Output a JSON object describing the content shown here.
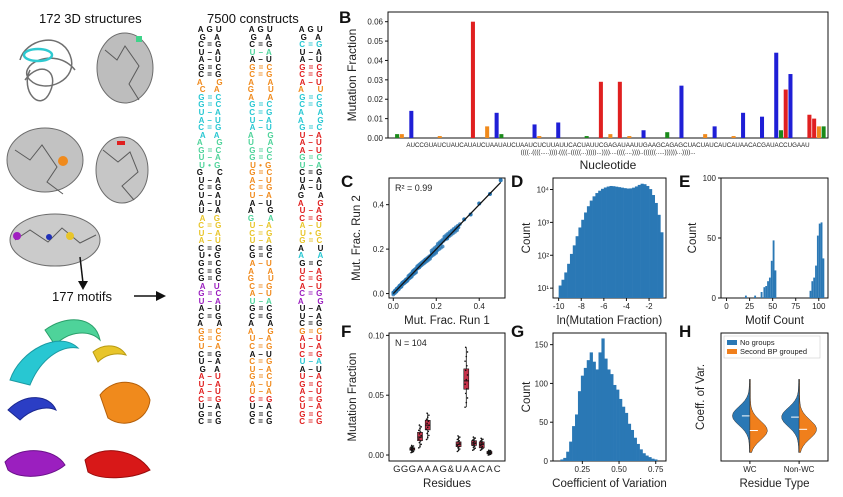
{
  "schematic": {
    "title_structures": "172 3D structures",
    "title_motifs": "177 motifs",
    "title_constructs": "7500 constructs"
  },
  "panel_labels": {
    "B": "B",
    "C": "C",
    "D": "D",
    "E": "E",
    "F": "F",
    "G": "G",
    "H": "H"
  },
  "constructs_columns": [
    [
      "A G U",
      "G   A",
      "C = G",
      "U – A",
      "A – U",
      "G = C",
      "C = G",
      "A     G",
      "C   A",
      "G = C",
      "G = C",
      "U – A",
      "A – U",
      "C = G",
      "A   A",
      "A     G",
      "G = C",
      "U – A",
      "U • G",
      "G     C",
      "U – A",
      "C = G",
      "U – A",
      "A – U",
      "U – A",
      "A   G",
      "C = G",
      "U – A",
      "A – U",
      "C = G",
      "U • G",
      "G = C",
      "C = G",
      "G = C",
      "A   U",
      "G = C",
      "U – A",
      "A – U",
      "C = G",
      "A     A",
      "G = C",
      "G = C",
      "U – A",
      "C = G",
      "U – A",
      "G   A",
      "A – U",
      "U – A",
      "A – U",
      "C = G",
      "U – A",
      "G = C",
      "C = G"
    ],
    [
      "A G U",
      "G   A",
      "C = G",
      "U – A",
      "A – U",
      "G = C",
      "C = G",
      "A     A",
      "G     U",
      "A     A",
      "G = C",
      "C = G",
      "U – A",
      "A – U",
      "A     G",
      "U     A",
      "G = C",
      "G = C",
      "U • G",
      "G = C",
      "A – U",
      "C = G",
      "U – A",
      "A – U",
      "A     G",
      "G     A",
      "U – A",
      "C = G",
      "U – A",
      "C = G",
      "G = C",
      "A – U",
      "A     A",
      "G     U",
      "C = G",
      "A – U",
      "U – A",
      "G = C",
      "C = G",
      "A     A",
      "A     G",
      "U – A",
      "C = G",
      "A – U",
      "C = G",
      "U – A",
      "G = C",
      "A – U",
      "U – A",
      "C = G",
      "U – A",
      "G = C",
      "C = G"
    ],
    [
      "A G U",
      "G   A",
      "C = G",
      "U – A",
      "A – U",
      "G = C",
      "C = G",
      "A – U",
      "A     U",
      "G = C",
      "C = G",
      "A     A",
      "A     G",
      "G = C",
      "U – A",
      "A – U",
      "A – U",
      "G = C",
      "U – A",
      "C = G",
      "U – A",
      "A – U",
      "G     A",
      "A     G",
      "U – A",
      "C = G",
      "A – U",
      "U • G",
      "G = C",
      "A     U",
      "A     A",
      "G = C",
      "U – A",
      "C = G",
      "A – U",
      "C = G",
      "A     G",
      "U – A",
      "U – A",
      "C = G",
      "G = C",
      "A – U",
      "U – A",
      "C = G",
      "U – A",
      "A – U",
      "U – A",
      "G = C",
      "A – U",
      "C = G",
      "U – A",
      "G = C",
      "C = G"
    ]
  ],
  "chart_data": [
    {
      "id": "B",
      "type": "bar",
      "title": "",
      "xlabel": "Nucleotide",
      "ylabel": "Mutation Fraction",
      "ylim": [
        0,
        0.065
      ],
      "yticks": [
        "0.00",
        "0.01",
        "0.02",
        "0.03",
        "0.04",
        "0.05",
        "0.06"
      ],
      "sequence": "AUCCGUAUCUAUCAUAUCUAAUAUCUAAUCUCUUAUUCACUAUUCGAGAUAAUUGAAGCAGAGCUACUAUCAUCAUAACACGAUACCUGAAU",
      "structure": "((((..((((.....)))).((((..(((((...)))))...))))....((((....))))..((((((.....))))))...))))...",
      "series": [
        {
          "name": "A",
          "color": "#e02020",
          "x": [
            17,
            44,
            48,
            83,
            88,
            89
          ],
          "values": [
            0.06,
            0.029,
            0.029,
            0.025,
            0.012,
            0.01
          ]
        },
        {
          "name": "C",
          "color": "#1f1fd6",
          "x": [
            4,
            22,
            30,
            35,
            53,
            61,
            68,
            74,
            78,
            81,
            84
          ],
          "values": [
            0.014,
            0.013,
            0.007,
            0.008,
            0.004,
            0.027,
            0.006,
            0.013,
            0.011,
            0.044,
            0.033
          ]
        },
        {
          "name": "G",
          "color": "#1a8a1a",
          "x": [
            1,
            23,
            41,
            58,
            82,
            91
          ],
          "values": [
            0.002,
            0.002,
            0.001,
            0.003,
            0.004,
            0.006
          ]
        },
        {
          "name": "U",
          "color": "#f08a1c",
          "x": [
            2,
            10,
            20,
            31,
            46,
            50,
            66,
            72,
            90
          ],
          "values": [
            0.002,
            0.001,
            0.006,
            0.001,
            0.002,
            0.001,
            0.002,
            0.001,
            0.006
          ]
        }
      ]
    },
    {
      "id": "C",
      "type": "scatter",
      "xlabel": "Mut. Frac. Run 1",
      "ylabel": "Mut. Frac. Run 2",
      "xlim": [
        -0.02,
        0.52
      ],
      "ylim": [
        -0.02,
        0.52
      ],
      "xticks": [
        "0.0",
        "0.2",
        "0.4"
      ],
      "yticks": [
        "0.0",
        "0.2",
        "0.4"
      ],
      "annotation": "R² = 0.99",
      "x": [
        0.002,
        0.005,
        0.01,
        0.015,
        0.02,
        0.03,
        0.04,
        0.05,
        0.06,
        0.08,
        0.1,
        0.12,
        0.15,
        0.18,
        0.2,
        0.22,
        0.25,
        0.28,
        0.3,
        0.33,
        0.36,
        0.4,
        0.45,
        0.5
      ],
      "y": [
        0.003,
        0.006,
        0.012,
        0.014,
        0.022,
        0.028,
        0.043,
        0.048,
        0.063,
        0.078,
        0.104,
        0.118,
        0.152,
        0.183,
        0.196,
        0.224,
        0.248,
        0.284,
        0.297,
        0.334,
        0.356,
        0.405,
        0.448,
        0.51
      ]
    },
    {
      "id": "D",
      "type": "bar",
      "xlabel": "ln(Mutation Fraction)",
      "ylabel": "Count",
      "yscale": "log",
      "xticks": [
        "-10",
        "-8",
        "-6",
        "-4",
        "-2"
      ],
      "yticks": [
        "10¹",
        "10²",
        "10³",
        "10⁴"
      ],
      "xlim": [
        -10.5,
        -0.5
      ],
      "bin_edges_start": -10,
      "bin_width": 0.25,
      "values": [
        12,
        18,
        30,
        55,
        110,
        200,
        380,
        700,
        1200,
        2000,
        3100,
        4600,
        6200,
        7800,
        9200,
        10500,
        11500,
        12300,
        12800,
        12600,
        12200,
        11800,
        11400,
        11000,
        10700,
        10800,
        11400,
        12400,
        13800,
        15000,
        14500,
        12800,
        10300,
        6800,
        3900,
        1700,
        500
      ]
    },
    {
      "id": "E",
      "type": "bar",
      "xlabel": "Motif Count",
      "ylabel": "Count",
      "ylim": [
        0,
        100
      ],
      "xticks": [
        "0",
        "25",
        "50",
        "75",
        "100"
      ],
      "yticks": [
        "0",
        "50",
        "100"
      ],
      "x": [
        20,
        30,
        37,
        40,
        42,
        44,
        46,
        48,
        50,
        52,
        90,
        92,
        94,
        96,
        98,
        100,
        102,
        104
      ],
      "values": [
        2,
        2,
        5,
        9,
        10,
        14,
        17,
        31,
        48,
        23,
        6,
        14,
        17,
        27,
        52,
        62,
        63,
        33
      ]
    },
    {
      "id": "F",
      "type": "box",
      "xlabel": "Residues",
      "ylabel": "Mutation Fraction",
      "annotation": "N = 104",
      "ylim": [
        -0.005,
        0.102
      ],
      "yticks": [
        "0.00",
        "0.05",
        "0.10"
      ],
      "categories": [
        "G",
        "G",
        "G",
        "A",
        "A",
        "A",
        "G",
        "&",
        "U",
        "A",
        "A",
        "C",
        "A",
        "C"
      ],
      "boxes": [
        {
          "pos": 3,
          "median": 0.005,
          "q1": 0.004,
          "q3": 0.006,
          "lo": 0.002,
          "hi": 0.008
        },
        {
          "pos": 4,
          "median": 0.015,
          "q1": 0.012,
          "q3": 0.019,
          "lo": 0.006,
          "hi": 0.025
        },
        {
          "pos": 5,
          "median": 0.025,
          "q1": 0.021,
          "q3": 0.029,
          "lo": 0.013,
          "hi": 0.035
        },
        {
          "pos": 9,
          "median": 0.009,
          "q1": 0.007,
          "q3": 0.011,
          "lo": 0.003,
          "hi": 0.016
        },
        {
          "pos": 10,
          "median": 0.062,
          "q1": 0.055,
          "q3": 0.072,
          "lo": 0.04,
          "hi": 0.09
        },
        {
          "pos": 11,
          "median": 0.01,
          "q1": 0.008,
          "q3": 0.012,
          "lo": 0.004,
          "hi": 0.015
        },
        {
          "pos": 12,
          "median": 0.009,
          "q1": 0.006,
          "q3": 0.011,
          "lo": 0.004,
          "hi": 0.014
        },
        {
          "pos": 13,
          "median": 0.002,
          "q1": 0.001,
          "q3": 0.003,
          "lo": 0.0,
          "hi": 0.004
        }
      ]
    },
    {
      "id": "G",
      "type": "bar",
      "xlabel": "Coefficient of Variation",
      "ylabel": "Count",
      "ylim": [
        0,
        165
      ],
      "xticks": [
        "0.25",
        "0.50",
        "0.75"
      ],
      "yticks": [
        "0",
        "50",
        "100",
        "150"
      ],
      "bin_edges_start": 0.1,
      "bin_width": 0.02,
      "values": [
        2,
        4,
        12,
        25,
        45,
        60,
        90,
        110,
        120,
        130,
        140,
        128,
        118,
        140,
        158,
        132,
        118,
        112,
        98,
        92,
        80,
        70,
        62,
        48,
        40,
        30,
        22,
        15,
        10,
        7,
        5,
        3,
        2
      ]
    },
    {
      "id": "H",
      "type": "violin",
      "xlabel": "Residue Type",
      "ylabel": "Coeff. of Var.",
      "categories": [
        "WC",
        "Non-WC"
      ],
      "legend": [
        {
          "name": "No groups",
          "color": "#2a78b5"
        },
        {
          "name": "Second BP grouped",
          "color": "#f07f1c"
        }
      ],
      "series": [
        {
          "name": "No groups",
          "medians": [
            0.32,
            0.31
          ]
        },
        {
          "name": "Second BP grouped",
          "medians": [
            0.2,
            0.21
          ]
        }
      ]
    }
  ]
}
